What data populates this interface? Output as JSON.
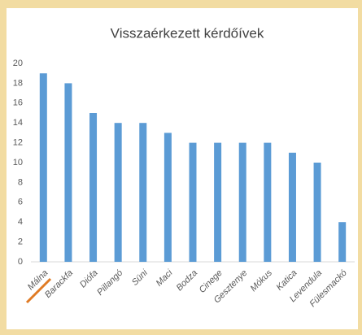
{
  "chart_data": {
    "type": "bar",
    "title": "Visszaérkezett kérdőívek",
    "categories": [
      "Málna",
      "Barackfa",
      "Diófa",
      "Pillangó",
      "Süni",
      "Maci",
      "Bodza",
      "Cinege",
      "Gesztenye",
      "Mókus",
      "Katica",
      "Levendula",
      "Fülesmackó"
    ],
    "values": [
      19,
      18,
      15,
      14,
      14,
      13,
      12,
      12,
      12,
      12,
      11,
      10,
      4
    ],
    "color": "#5b9bd5",
    "ylim": [
      0,
      20
    ],
    "yticks": [
      0,
      2,
      4,
      6,
      8,
      10,
      12,
      14,
      16,
      18,
      20
    ],
    "grid": false
  }
}
